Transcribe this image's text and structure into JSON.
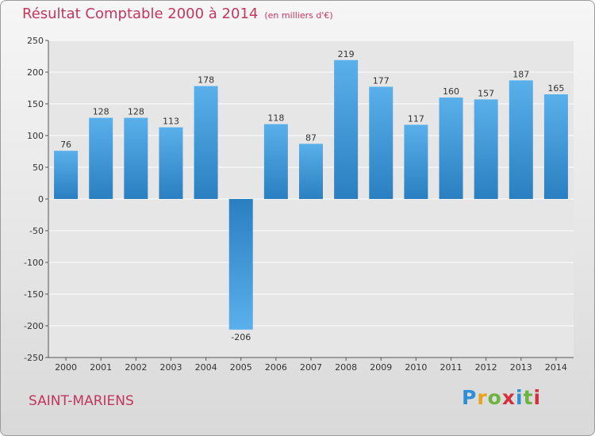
{
  "title": {
    "main": "Résultat Comptable 2000 à 2014",
    "unit": "(en milliers d'€)"
  },
  "location": "SAINT-MARIENS",
  "brand": {
    "letters": [
      "P",
      "r",
      "o",
      "x",
      "i",
      "t",
      "i"
    ],
    "colors": [
      "#2e8fd8",
      "#e9a21b",
      "#6cb33f",
      "#d62f3c",
      "#2e8fd8",
      "#6cb33f",
      "#d62f3c"
    ]
  },
  "colors": {
    "title": "#c2375e",
    "bar_light": "#5ab0ea",
    "bar_dark": "#2a7fc0"
  },
  "chart_data": {
    "type": "bar",
    "title": "Résultat Comptable 2000 à 2014",
    "ylabel": "(en milliers d'€)",
    "xlabel": "",
    "categories": [
      "2000",
      "2001",
      "2002",
      "2003",
      "2004",
      "2005",
      "2006",
      "2007",
      "2008",
      "2009",
      "2010",
      "2011",
      "2012",
      "2013",
      "2014"
    ],
    "values": [
      76,
      128,
      128,
      113,
      178,
      -206,
      118,
      87,
      219,
      177,
      117,
      160,
      157,
      187,
      165
    ],
    "ylim": [
      -250,
      250
    ],
    "yticks": [
      250,
      200,
      150,
      100,
      50,
      0,
      -50,
      -100,
      -150,
      -200,
      -250
    ],
    "grid": true
  }
}
